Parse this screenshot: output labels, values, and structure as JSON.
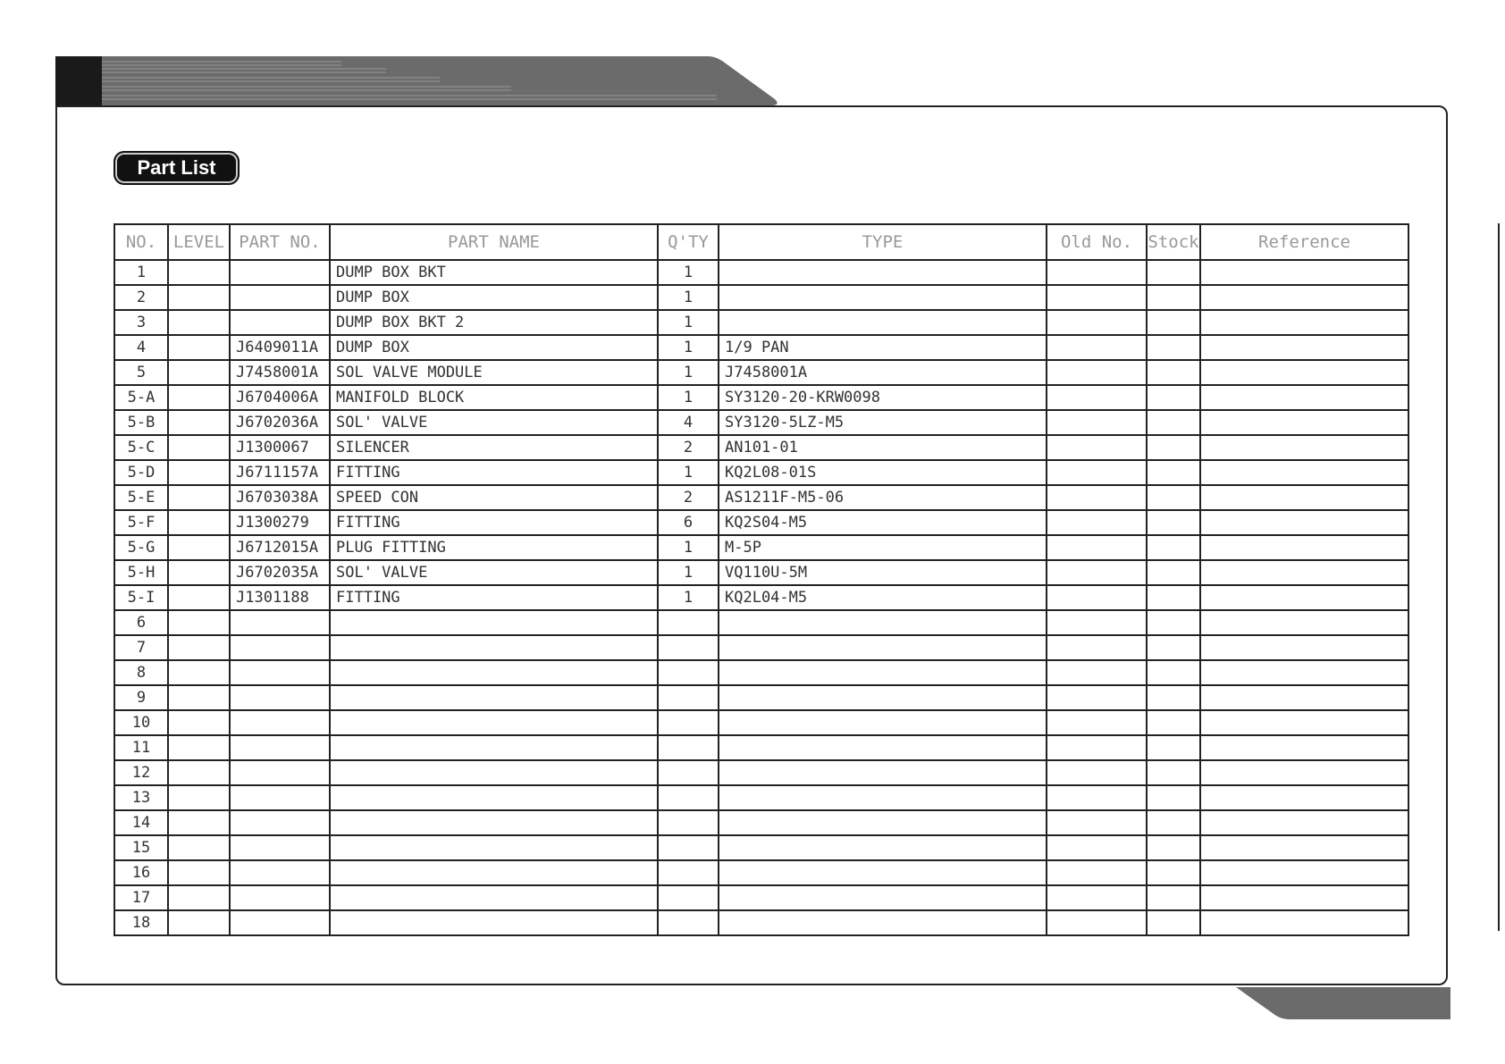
{
  "title": "Part List",
  "columns": [
    "NO.",
    "LEVEL",
    "PART NO.",
    "PART NAME",
    "Q'TY",
    "TYPE",
    "Old No.",
    "Stock",
    "Reference"
  ],
  "rows": [
    [
      "1",
      "",
      "",
      "DUMP BOX BKT",
      "1",
      "",
      "",
      "",
      ""
    ],
    [
      "2",
      "",
      "",
      "DUMP BOX",
      "1",
      "",
      "",
      "",
      ""
    ],
    [
      "3",
      "",
      "",
      "DUMP BOX BKT 2",
      "1",
      "",
      "",
      "",
      ""
    ],
    [
      "4",
      "",
      "J6409011A",
      "DUMP BOX",
      "1",
      "1/9 PAN",
      "",
      "",
      ""
    ],
    [
      "5",
      "",
      "J7458001A",
      "SOL VALVE MODULE",
      "1",
      "J7458001A",
      "",
      "",
      ""
    ],
    [
      "5-A",
      "",
      "J6704006A",
      "MANIFOLD BLOCK",
      "1",
      "SY3120-20-KRW0098",
      "",
      "",
      ""
    ],
    [
      "5-B",
      "",
      "J6702036A",
      "SOL' VALVE",
      "4",
      "SY3120-5LZ-M5",
      "",
      "",
      ""
    ],
    [
      "5-C",
      "",
      "J1300067",
      "SILENCER",
      "2",
      "AN101-01",
      "",
      "",
      ""
    ],
    [
      "5-D",
      "",
      "J6711157A",
      "FITTING",
      "1",
      "KQ2L08-01S",
      "",
      "",
      ""
    ],
    [
      "5-E",
      "",
      "J6703038A",
      "SPEED CON",
      "2",
      "AS1211F-M5-06",
      "",
      "",
      ""
    ],
    [
      "5-F",
      "",
      "J1300279",
      "FITTING",
      "6",
      "KQ2S04-M5",
      "",
      "",
      ""
    ],
    [
      "5-G",
      "",
      "J6712015A",
      "PLUG FITTING",
      "1",
      "M-5P",
      "",
      "",
      ""
    ],
    [
      "5-H",
      "",
      "J6702035A",
      "SOL' VALVE",
      "1",
      "VQ110U-5M",
      "",
      "",
      ""
    ],
    [
      "5-I",
      "",
      "J1301188",
      "FITTING",
      "1",
      "KQ2L04-M5",
      "",
      "",
      ""
    ],
    [
      "6",
      "",
      "",
      "",
      "",
      "",
      "",
      "",
      ""
    ],
    [
      "7",
      "",
      "",
      "",
      "",
      "",
      "",
      "",
      ""
    ],
    [
      "8",
      "",
      "",
      "",
      "",
      "",
      "",
      "",
      ""
    ],
    [
      "9",
      "",
      "",
      "",
      "",
      "",
      "",
      "",
      ""
    ],
    [
      "10",
      "",
      "",
      "",
      "",
      "",
      "",
      "",
      ""
    ],
    [
      "11",
      "",
      "",
      "",
      "",
      "",
      "",
      "",
      ""
    ],
    [
      "12",
      "",
      "",
      "",
      "",
      "",
      "",
      "",
      ""
    ],
    [
      "13",
      "",
      "",
      "",
      "",
      "",
      "",
      "",
      ""
    ],
    [
      "14",
      "",
      "",
      "",
      "",
      "",
      "",
      "",
      ""
    ],
    [
      "15",
      "",
      "",
      "",
      "",
      "",
      "",
      "",
      ""
    ],
    [
      "16",
      "",
      "",
      "",
      "",
      "",
      "",
      "",
      ""
    ],
    [
      "17",
      "",
      "",
      "",
      "",
      "",
      "",
      "",
      ""
    ],
    [
      "18",
      "",
      "",
      "",
      "",
      "",
      "",
      "",
      ""
    ]
  ]
}
